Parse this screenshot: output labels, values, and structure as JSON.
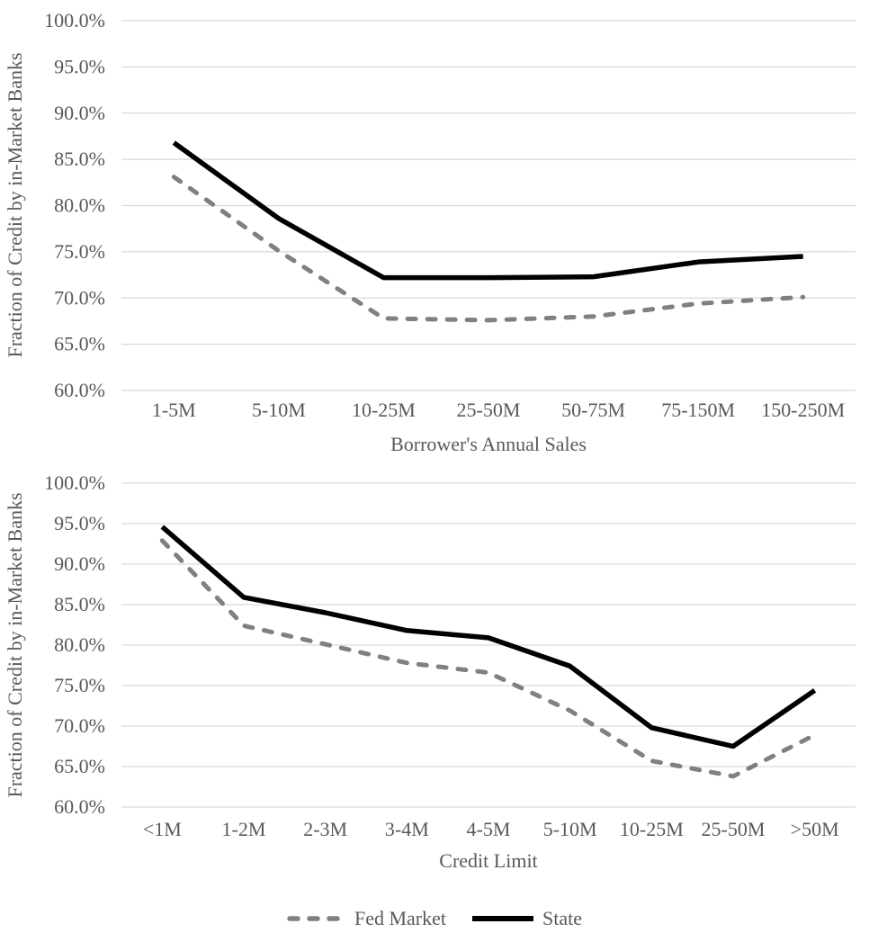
{
  "figure": {
    "background": "#ffffff",
    "text_color": "#595959",
    "grid_color": "#d9d9d9"
  },
  "legend": {
    "position": "bottom-center",
    "items": [
      {
        "label": "Fed Market",
        "style": "dashed",
        "color": "#808080"
      },
      {
        "label": "State",
        "style": "solid",
        "color": "#000000"
      }
    ]
  },
  "chart_data": [
    {
      "type": "line",
      "title": "",
      "xlabel": "Borrower's Annual Sales",
      "ylabel": "Fraction of Credit by in-Market Banks",
      "categories": [
        "1-5M",
        "5-10M",
        "10-25M",
        "25-50M",
        "50-75M",
        "75-150M",
        "150-250M"
      ],
      "series": [
        {
          "name": "Fed Market",
          "style": "dashed",
          "color": "#808080",
          "values": [
            83.1,
            75.1,
            67.8,
            67.6,
            68.0,
            69.4,
            70.1
          ]
        },
        {
          "name": "State",
          "style": "solid",
          "color": "#000000",
          "values": [
            86.8,
            78.6,
            72.2,
            72.2,
            72.3,
            73.9,
            74.5
          ]
        }
      ],
      "ylim": [
        60,
        100
      ],
      "ytick_step": 5,
      "ytick_format": "percent_1dp",
      "grid": true,
      "legend_position": "shared-bottom"
    },
    {
      "type": "line",
      "title": "",
      "xlabel": "Credit Limit",
      "ylabel": "Fraction of Credit by in-Market Banks",
      "categories": [
        "<1M",
        "1-2M",
        "2-3M",
        "3-4M",
        "4-5M",
        "5-10M",
        "10-25M",
        "25-50M",
        ">50M"
      ],
      "series": [
        {
          "name": "Fed Market",
          "style": "dashed",
          "color": "#808080",
          "values": [
            92.9,
            82.4,
            80.1,
            77.8,
            76.6,
            71.9,
            65.7,
            63.8,
            68.9
          ]
        },
        {
          "name": "State",
          "style": "solid",
          "color": "#000000",
          "values": [
            94.6,
            85.9,
            84.0,
            81.8,
            80.9,
            77.4,
            69.8,
            67.5,
            74.4
          ]
        }
      ],
      "ylim": [
        60,
        100
      ],
      "ytick_step": 5,
      "ytick_format": "percent_1dp",
      "grid": true,
      "legend_position": "shared-bottom"
    }
  ]
}
